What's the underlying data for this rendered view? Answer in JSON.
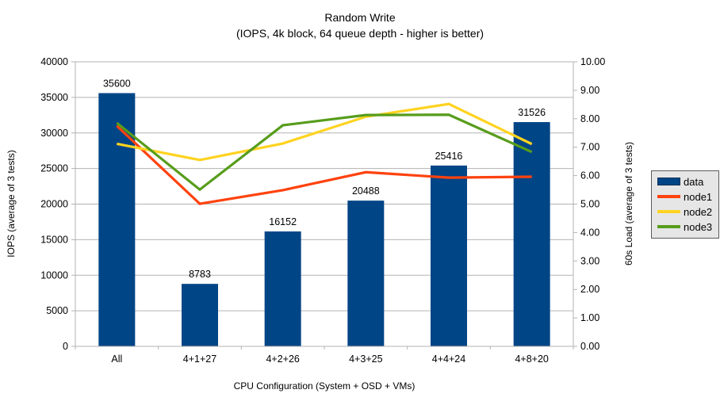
{
  "title": "Random Write",
  "subtitle": "(IOPS, 4k block, 64 queue depth - higher is better)",
  "chart_data": {
    "type": "bar",
    "combo": "bars with overlaid lines on secondary axis",
    "categories": [
      "All",
      "4+1+27",
      "4+2+26",
      "4+3+25",
      "4+4+24",
      "4+8+20"
    ],
    "series": [
      {
        "name": "data",
        "type": "bar",
        "axis": "left",
        "color": "#004586",
        "values": [
          35600,
          8783,
          16152,
          20488,
          25416,
          31526
        ]
      },
      {
        "name": "node1",
        "type": "line",
        "axis": "right",
        "color": "#ff420e",
        "values": [
          7.75,
          5.01,
          5.49,
          6.12,
          5.93,
          5.96
        ]
      },
      {
        "name": "node2",
        "type": "line",
        "axis": "right",
        "color": "#ffd320",
        "values": [
          7.12,
          6.55,
          7.13,
          8.07,
          8.52,
          7.11
        ]
      },
      {
        "name": "node3",
        "type": "line",
        "axis": "right",
        "color": "#579d1c",
        "values": [
          7.85,
          5.51,
          7.77,
          8.13,
          8.14,
          6.83
        ]
      }
    ],
    "bar_labels": [
      35600,
      8783,
      16152,
      20488,
      25416,
      31526
    ],
    "xlabel": "CPU Configuration (System + OSD + VMs)",
    "ylabel_left": "IOPS (average of 3 tests)",
    "ylabel_right": "60s Load (average of 3 tests)",
    "ylim_left": [
      0,
      40000
    ],
    "ytick_step_left": 5000,
    "ylim_right": [
      0,
      10
    ],
    "ytick_step_right": 1,
    "grid": "horizontal gridlines on",
    "legend_position": "right",
    "colors": {
      "grid": "#b3b3b3",
      "axis": "#b3b3b3",
      "legend_bg": "#e6e6e6",
      "text": "#000000"
    }
  }
}
